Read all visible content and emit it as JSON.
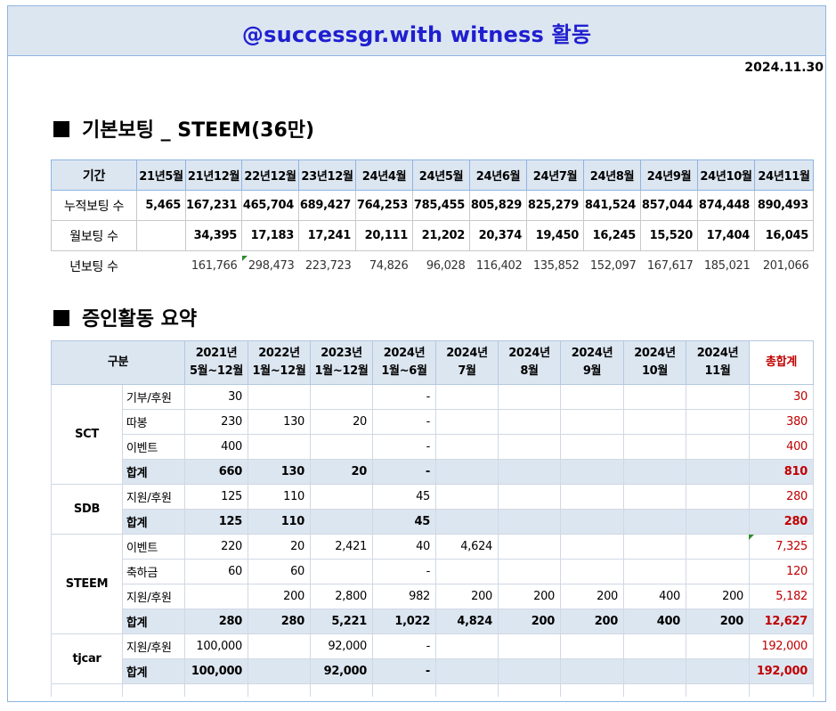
{
  "title": "@successgr.with witness 활동",
  "date": "2024.11.30",
  "section1": {
    "title": "기본보팅 _ STEEM(36만)",
    "header_label": "기간",
    "periods": [
      "21년5월",
      "21년12월",
      "22년12월",
      "23년12월",
      "24년4월",
      "24년5월",
      "24년6월",
      "24년7월",
      "24년8월",
      "24년9월",
      "24년10월",
      "24년11월"
    ],
    "rows": [
      {
        "label": "누적보팅 수",
        "values": [
          "5,465",
          "167,231",
          "465,704",
          "689,427",
          "764,253",
          "785,455",
          "805,829",
          "825,279",
          "841,524",
          "857,044",
          "874,448",
          "890,493"
        ]
      },
      {
        "label": "월보팅 수",
        "values": [
          "",
          "34,395",
          "17,183",
          "17,241",
          "20,111",
          "21,202",
          "20,374",
          "19,450",
          "16,245",
          "15,520",
          "17,404",
          "16,045"
        ]
      },
      {
        "label": "년보팅 수",
        "values": [
          "",
          "161,766",
          "298,473",
          "223,723",
          "74,826",
          "96,028",
          "116,402",
          "135,852",
          "152,097",
          "167,617",
          "185,021",
          "201,066"
        ]
      }
    ]
  },
  "section2": {
    "title": "증인활동 요약",
    "header": {
      "category": "구분",
      "columns": [
        [
          "2021년",
          "5월~12월"
        ],
        [
          "2022년",
          "1월~12월"
        ],
        [
          "2023년",
          "1월~12월"
        ],
        [
          "2024년",
          "1월~6월"
        ],
        [
          "2024년",
          "7월"
        ],
        [
          "2024년",
          "8월"
        ],
        [
          "2024년",
          "9월"
        ],
        [
          "2024년",
          "10월"
        ],
        [
          "2024년",
          "11월"
        ]
      ],
      "total": "총합계"
    },
    "groups": [
      {
        "name": "SCT",
        "rows": [
          {
            "sub": "기부/후원",
            "values": [
              "30",
              "",
              "",
              "-",
              "",
              "",
              "",
              "",
              ""
            ],
            "total": "30"
          },
          {
            "sub": "따봉",
            "values": [
              "230",
              "130",
              "20",
              "-",
              "",
              "",
              "",
              "",
              ""
            ],
            "total": "380"
          },
          {
            "sub": "이벤트",
            "values": [
              "400",
              "",
              "",
              "-",
              "",
              "",
              "",
              "",
              ""
            ],
            "total": "400"
          },
          {
            "sub": "합계",
            "sum": true,
            "values": [
              "660",
              "130",
              "20",
              "-",
              "",
              "",
              "",
              "",
              ""
            ],
            "total": "810"
          }
        ]
      },
      {
        "name": "SDB",
        "rows": [
          {
            "sub": "지원/후원",
            "values": [
              "125",
              "110",
              "",
              "45",
              "",
              "",
              "",
              "",
              ""
            ],
            "total": "280"
          },
          {
            "sub": "합계",
            "sum": true,
            "values": [
              "125",
              "110",
              "",
              "45",
              "",
              "",
              "",
              "",
              ""
            ],
            "total": "280"
          }
        ]
      },
      {
        "name": "STEEM",
        "rows": [
          {
            "sub": "이벤트",
            "values": [
              "220",
              "20",
              "2,421",
              "40",
              "4,624",
              "",
              "",
              "",
              ""
            ],
            "total": "7,325"
          },
          {
            "sub": "축하금",
            "values": [
              "60",
              "60",
              "",
              "-",
              "",
              "",
              "",
              "",
              ""
            ],
            "total": "120"
          },
          {
            "sub": "지원/후원",
            "values": [
              "",
              "200",
              "2,800",
              "982",
              "200",
              "200",
              "200",
              "400",
              "200"
            ],
            "total": "5,182"
          },
          {
            "sub": "합계",
            "sum": true,
            "values": [
              "280",
              "280",
              "5,221",
              "1,022",
              "4,824",
              "200",
              "200",
              "400",
              "200"
            ],
            "total": "12,627"
          }
        ]
      },
      {
        "name": "tjcar",
        "rows": [
          {
            "sub": "지원/후원",
            "values": [
              "100,000",
              "",
              "92,000",
              "-",
              "",
              "",
              "",
              "",
              ""
            ],
            "total": "192,000"
          },
          {
            "sub": "합계",
            "sum": true,
            "values": [
              "100,000",
              "",
              "92,000",
              "-",
              "",
              "",
              "",
              "",
              ""
            ],
            "total": "192,000"
          }
        ]
      }
    ]
  }
}
